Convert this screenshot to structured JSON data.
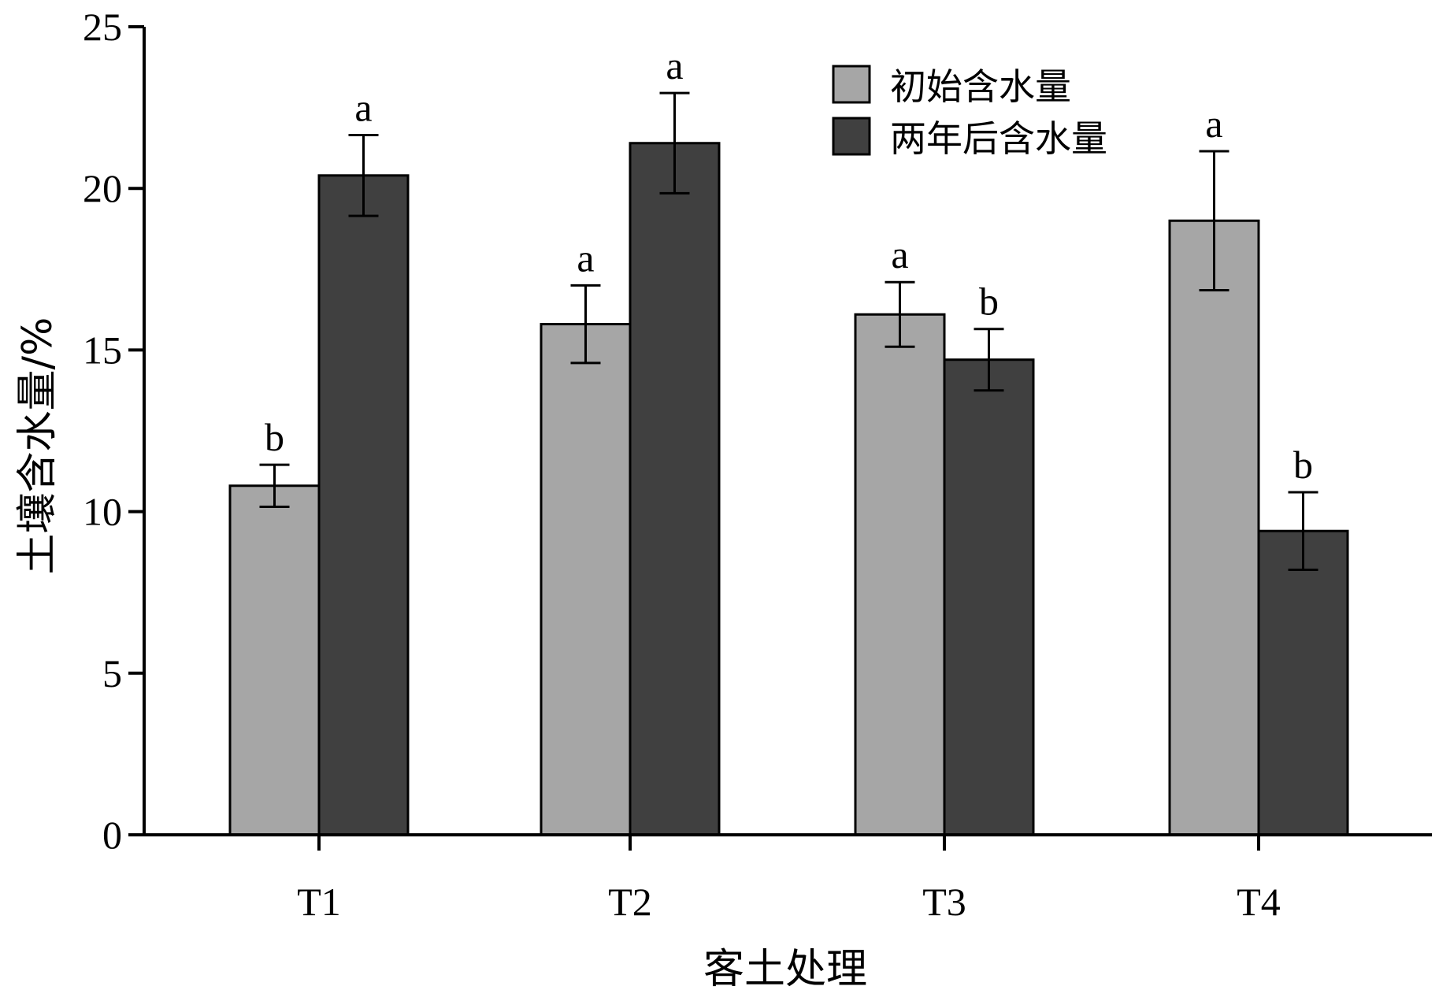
{
  "chart_data": {
    "type": "bar",
    "title": "",
    "xlabel": "客土处理",
    "ylabel": "土壤含水量/%",
    "categories": [
      "T1",
      "T2",
      "T3",
      "T4"
    ],
    "ylim": [
      0,
      25
    ],
    "yticks": [
      "0",
      "5",
      "10",
      "15",
      "20",
      "25"
    ],
    "grid": false,
    "legend_position": "top-right",
    "series": [
      {
        "name": "初始含水量",
        "color": "#a6a6a6",
        "values": [
          10.8,
          15.8,
          16.1,
          19.0
        ],
        "errors": [
          0.65,
          1.2,
          1.0,
          2.15
        ],
        "labels": [
          "b",
          "a",
          "a",
          "a"
        ]
      },
      {
        "name": "两年后含水量",
        "color": "#404040",
        "values": [
          20.4,
          21.4,
          14.7,
          9.4
        ],
        "errors": [
          1.25,
          1.55,
          0.95,
          1.2
        ],
        "labels": [
          "a",
          "a",
          "b",
          "b"
        ]
      }
    ]
  }
}
